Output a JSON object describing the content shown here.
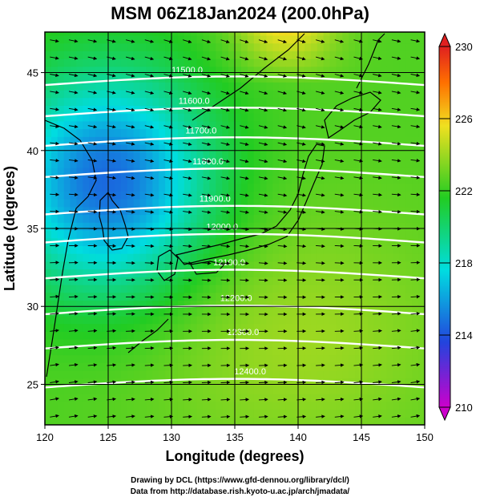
{
  "chart_data": {
    "type": "heatmap",
    "title": "MSM 06Z18Jan2024 (200.0hPa)",
    "xlabel": "Longitude (degrees)",
    "ylabel": "Latitude  (degrees)",
    "xlim": [
      120,
      150
    ],
    "ylim": [
      22.4,
      47.6
    ],
    "x_ticks": [
      "120",
      "125",
      "130",
      "135",
      "140",
      "145",
      "150"
    ],
    "y_ticks": [
      "25",
      "30",
      "35",
      "40",
      "45"
    ],
    "grid": true,
    "fill_variable": "temperature",
    "colorbar": {
      "range": [
        210,
        230
      ],
      "ticks": [
        "210",
        "214",
        "218",
        "222",
        "226",
        "230"
      ],
      "colors": [
        "#cc00cc",
        "#2244dd",
        "#00dde0",
        "#22cc22",
        "#f0e020",
        "#ff7000",
        "#e02020"
      ]
    },
    "contour_labels": [
      "11500.0",
      "11600.0",
      "11700.0",
      "11800.0",
      "11900.0",
      "12000.0",
      "12100.0",
      "12200.0",
      "12300.0",
      "12400.0"
    ],
    "contour_levels": [
      11500,
      11600,
      11700,
      11800,
      11900,
      12000,
      12100,
      12200,
      12300,
      12400
    ],
    "vectors": "wind"
  },
  "footer": {
    "line1": "Drawing by DCL (https://www.gfd-dennou.org/library/dcl/)",
    "line2": "Data from http://database.rish.kyoto-u.ac.jp/arch/jmadata/"
  }
}
